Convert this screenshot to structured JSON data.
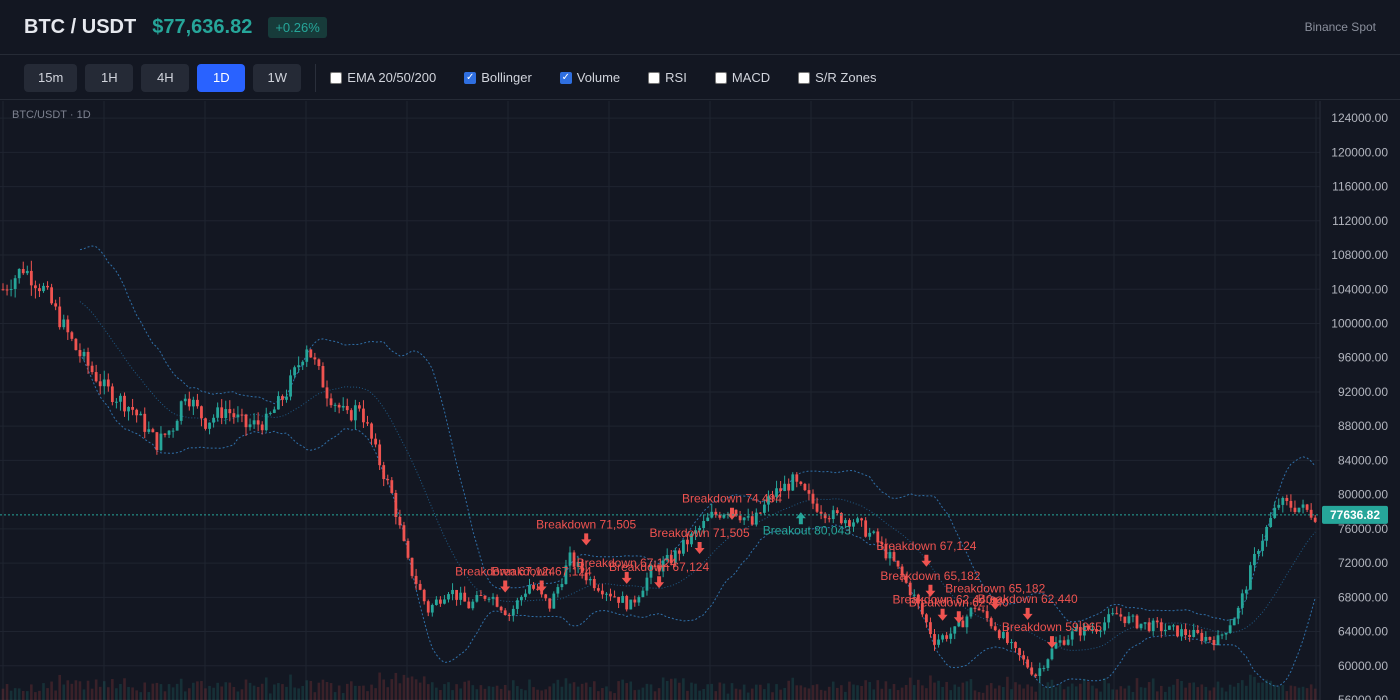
{
  "header": {
    "pair": "BTC / USDT",
    "price": "$77,636.82",
    "change": "+0.26%",
    "exchange": "Binance Spot"
  },
  "toolbar": {
    "timeframes": [
      {
        "label": "15m",
        "active": false
      },
      {
        "label": "1H",
        "active": false
      },
      {
        "label": "4H",
        "active": false
      },
      {
        "label": "1D",
        "active": true
      },
      {
        "label": "1W",
        "active": false
      }
    ],
    "indicators": [
      {
        "label": "EMA 20/50/200",
        "checked": false
      },
      {
        "label": "Bollinger",
        "checked": true
      },
      {
        "label": "Volume",
        "checked": true
      },
      {
        "label": "RSI",
        "checked": false
      },
      {
        "label": "MACD",
        "checked": false
      },
      {
        "label": "S/R Zones",
        "checked": false
      }
    ]
  },
  "chart_data": {
    "type": "candlestick",
    "title": "BTC/USDT · 1D",
    "ylim": [
      56000,
      126000
    ],
    "y_ticks": [
      56000,
      60000,
      64000,
      68000,
      72000,
      76000,
      80000,
      84000,
      88000,
      92000,
      96000,
      100000,
      104000,
      108000,
      112000,
      116000,
      120000,
      124000
    ],
    "y_tick_labels": [
      "56000.00",
      "60000.00",
      "64000.00",
      "68000.00",
      "72000.00",
      "76000.00",
      "80000.00",
      "84000.00",
      "88000.00",
      "92000.00",
      "96000.00",
      "100000.00",
      "104000.00",
      "108000.00",
      "112000.00",
      "116000.00",
      "120000.00",
      "124000.00"
    ],
    "last_price": 77636.82,
    "last_price_label": "77636.82",
    "grid": true,
    "candle_count": 265,
    "up_color": "#26a69a",
    "down_color": "#ef5350",
    "bollinger_color": "#2f6fa8",
    "close_anchors": [
      [
        0,
        104000
      ],
      [
        5,
        106500
      ],
      [
        10,
        104000
      ],
      [
        18,
        97000
      ],
      [
        25,
        92500
      ],
      [
        32,
        90000
      ],
      [
        38,
        86000
      ],
      [
        42,
        88000
      ],
      [
        45,
        92000
      ],
      [
        50,
        88500
      ],
      [
        55,
        90000
      ],
      [
        60,
        88000
      ],
      [
        65,
        88500
      ],
      [
        70,
        92000
      ],
      [
        75,
        97500
      ],
      [
        80,
        92000
      ],
      [
        85,
        89000
      ],
      [
        88,
        90500
      ],
      [
        92,
        85000
      ],
      [
        96,
        80000
      ],
      [
        100,
        72000
      ],
      [
        105,
        66500
      ],
      [
        110,
        69000
      ],
      [
        115,
        67000
      ],
      [
        120,
        68500
      ],
      [
        125,
        66000
      ],
      [
        130,
        69500
      ],
      [
        135,
        67000
      ],
      [
        140,
        72500
      ],
      [
        145,
        70000
      ],
      [
        150,
        68500
      ],
      [
        155,
        67000
      ],
      [
        160,
        71000
      ],
      [
        165,
        72500
      ],
      [
        170,
        75000
      ],
      [
        175,
        77500
      ],
      [
        180,
        78500
      ],
      [
        185,
        76500
      ],
      [
        190,
        80000
      ],
      [
        195,
        81500
      ],
      [
        200,
        79000
      ],
      [
        205,
        77500
      ],
      [
        210,
        77000
      ],
      [
        215,
        75000
      ],
      [
        220,
        72000
      ],
      [
        225,
        68000
      ],
      [
        230,
        63000
      ],
      [
        235,
        64000
      ],
      [
        240,
        67000
      ],
      [
        245,
        64500
      ],
      [
        250,
        61500
      ],
      [
        255,
        59000
      ],
      [
        260,
        62500
      ],
      [
        265,
        64000
      ],
      [
        270,
        64500
      ],
      [
        275,
        66000
      ],
      [
        280,
        65000
      ],
      [
        285,
        64500
      ],
      [
        290,
        64000
      ],
      [
        295,
        63500
      ],
      [
        300,
        63000
      ],
      [
        305,
        66500
      ],
      [
        310,
        74000
      ],
      [
        315,
        79000
      ],
      [
        320,
        78500
      ],
      [
        324,
        77637
      ]
    ],
    "annotations": [
      {
        "text": "Breakdown 71,505",
        "x": 144,
        "price": 75000,
        "type": "breakdown"
      },
      {
        "text": "Breakdown 74,494",
        "x": 180,
        "price": 78000,
        "type": "breakdown"
      },
      {
        "text": "Breakdown 71,505",
        "x": 172,
        "price": 74000,
        "type": "breakdown"
      },
      {
        "text": "Breakdown 67,124",
        "x": 124,
        "price": 69500,
        "type": "breakdown"
      },
      {
        "text": "Breakdown 67,124",
        "x": 133,
        "price": 69500,
        "type": "breakdown"
      },
      {
        "text": "Breakdown 67,124",
        "x": 154,
        "price": 70500,
        "type": "breakdown"
      },
      {
        "text": "Breakdown 67,124",
        "x": 162,
        "price": 70000,
        "type": "breakdown"
      },
      {
        "text": "Breakout 80,043",
        "x": 197,
        "price": 77000,
        "type": "breakout"
      },
      {
        "text": "Breakdown 67,124",
        "x": 228,
        "price": 72500,
        "type": "breakdown"
      },
      {
        "text": "Breakdown 65,182",
        "x": 229,
        "price": 69000,
        "type": "breakdown"
      },
      {
        "text": "Breakdown 65,182",
        "x": 245,
        "price": 67500,
        "type": "breakdown"
      },
      {
        "text": "Breakdown 62,440",
        "x": 232,
        "price": 66200,
        "type": "breakdown"
      },
      {
        "text": "Breakdown 62,440",
        "x": 236,
        "price": 65900,
        "type": "breakdown"
      },
      {
        "text": "Breakdown 62,440",
        "x": 253,
        "price": 66300,
        "type": "breakdown"
      },
      {
        "text": "Breakdown 59,865",
        "x": 259,
        "price": 63000,
        "type": "breakdown"
      }
    ]
  }
}
